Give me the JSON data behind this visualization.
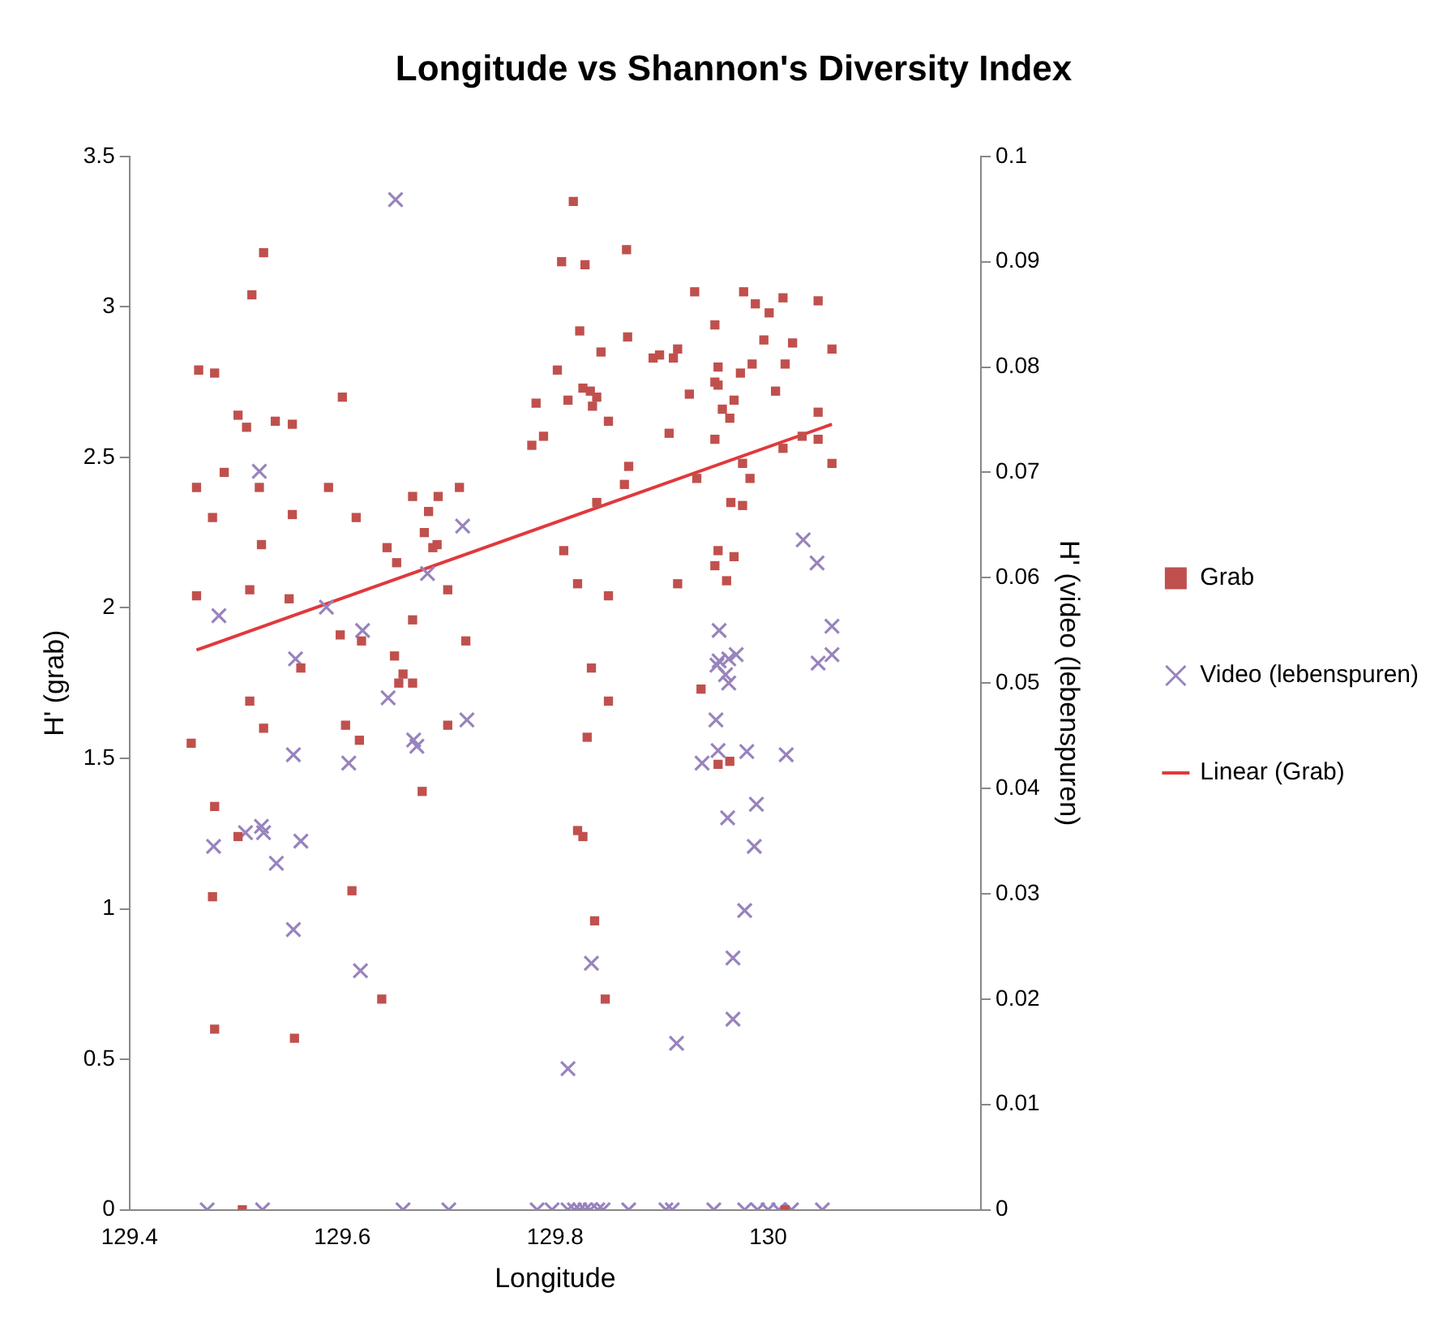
{
  "chart_data": {
    "type": "scatter",
    "title": "Longitude vs Shannon's Diversity Index",
    "xlabel": "Longitude",
    "ylabel": "H' (grab)",
    "y2label": "H' (video (lebenspuren)",
    "xlim": [
      129.4,
      130.2
    ],
    "xticks": [
      129.4,
      129.6,
      129.8,
      130
    ],
    "ylim": [
      0,
      3.5
    ],
    "yticks": [
      0,
      0.5,
      1,
      1.5,
      2,
      2.5,
      3,
      3.5
    ],
    "y2lim": [
      0,
      0.1
    ],
    "y2ticks": [
      0,
      0.01,
      0.02,
      0.03,
      0.04,
      0.05,
      0.06,
      0.07,
      0.08,
      0.09,
      0.1
    ],
    "grid": false,
    "legend": "right",
    "series": [
      {
        "name": "Grab",
        "type": "scatter",
        "marker": "square",
        "color": "#c0504d",
        "x": [
          129.526,
          129.515,
          129.465,
          129.48,
          129.6,
          129.502,
          129.51,
          129.537,
          129.553,
          129.463,
          129.489,
          129.522,
          129.587,
          129.478,
          129.553,
          129.613,
          129.666,
          129.69,
          129.71,
          129.681,
          129.524,
          129.677,
          129.689,
          129.685,
          129.642,
          129.651,
          129.463,
          129.513,
          129.55,
          129.699,
          129.666,
          129.598,
          129.618,
          129.716,
          129.561,
          129.649,
          129.657,
          129.653,
          129.666,
          129.513,
          129.458,
          129.526,
          129.603,
          129.616,
          129.699,
          129.675,
          129.48,
          129.502,
          129.478,
          129.609,
          129.637,
          129.48,
          129.555,
          129.506,
          129.817,
          129.806,
          129.828,
          129.867,
          129.931,
          129.977,
          129.988,
          130.001,
          130.014,
          130.047,
          129.95,
          129.823,
          129.868,
          129.996,
          130.023,
          130.06,
          129.843,
          129.892,
          129.898,
          129.911,
          129.915,
          129.802,
          129.953,
          129.985,
          129.974,
          130.016,
          129.782,
          129.812,
          129.826,
          129.833,
          129.839,
          129.835,
          129.85,
          129.95,
          129.953,
          129.926,
          130.007,
          129.968,
          129.957,
          129.964,
          129.778,
          129.789,
          129.907,
          129.95,
          130.047,
          130.032,
          130.047,
          130.014,
          130.06,
          129.869,
          129.865,
          129.976,
          129.933,
          129.983,
          129.839,
          129.965,
          129.976,
          129.808,
          129.953,
          129.95,
          129.968,
          129.821,
          129.85,
          129.915,
          129.961,
          129.834,
          129.937,
          129.85,
          129.83,
          129.953,
          129.964,
          129.821,
          129.826,
          129.837,
          129.847,
          130.016
        ],
        "values": [
          3.18,
          3.04,
          2.79,
          2.78,
          2.7,
          2.64,
          2.6,
          2.62,
          2.61,
          2.4,
          2.45,
          2.4,
          2.4,
          2.3,
          2.31,
          2.3,
          2.37,
          2.37,
          2.4,
          2.32,
          2.21,
          2.25,
          2.21,
          2.2,
          2.2,
          2.15,
          2.04,
          2.06,
          2.03,
          2.06,
          1.96,
          1.91,
          1.89,
          1.89,
          1.8,
          1.84,
          1.78,
          1.75,
          1.75,
          1.69,
          1.55,
          1.6,
          1.61,
          1.56,
          1.61,
          1.39,
          1.34,
          1.24,
          1.04,
          1.06,
          0.7,
          0.6,
          0.57,
          0,
          3.35,
          3.15,
          3.14,
          3.19,
          3.05,
          3.05,
          3.01,
          2.98,
          3.03,
          3.02,
          2.94,
          2.92,
          2.9,
          2.89,
          2.88,
          2.86,
          2.85,
          2.83,
          2.84,
          2.83,
          2.86,
          2.79,
          2.8,
          2.81,
          2.78,
          2.81,
          2.68,
          2.69,
          2.73,
          2.72,
          2.7,
          2.67,
          2.62,
          2.75,
          2.74,
          2.71,
          2.72,
          2.69,
          2.66,
          2.63,
          2.54,
          2.57,
          2.58,
          2.56,
          2.65,
          2.57,
          2.56,
          2.53,
          2.48,
          2.47,
          2.41,
          2.48,
          2.43,
          2.43,
          2.35,
          2.35,
          2.34,
          2.19,
          2.19,
          2.14,
          2.17,
          2.08,
          2.04,
          2.08,
          2.09,
          1.8,
          1.73,
          1.69,
          1.57,
          1.48,
          1.49,
          1.26,
          1.24,
          0.96,
          0.7,
          0
        ]
      },
      {
        "name": "Video (lebenspuren)",
        "type": "scatter",
        "marker": "cross",
        "color": "#9883bd",
        "axis": "y2",
        "x": [
          129.65,
          129.522,
          129.713,
          129.68,
          129.484,
          129.585,
          129.619,
          129.556,
          129.643,
          129.717,
          129.554,
          129.606,
          129.667,
          129.67,
          129.479,
          129.509,
          129.524,
          129.526,
          129.538,
          129.561,
          129.554,
          129.617,
          129.473,
          129.525,
          129.657,
          129.7,
          129.783,
          129.797,
          130.033,
          130.046,
          130.06,
          130.06,
          130.047,
          129.954,
          129.954,
          129.963,
          129.97,
          129.952,
          129.96,
          129.963,
          129.951,
          129.953,
          129.98,
          129.938,
          130.017,
          129.989,
          129.962,
          129.987,
          129.978,
          129.834,
          129.967,
          129.967,
          129.914,
          129.812,
          129.812,
          129.818,
          129.823,
          129.828,
          129.833,
          129.84,
          129.845,
          129.869,
          129.904,
          129.91,
          129.949,
          129.978,
          129.99,
          130.0,
          130.01,
          130.022,
          130.051
        ],
        "values": [
          0.0959,
          0.0701,
          0.0649,
          0.0604,
          0.0564,
          0.0572,
          0.055,
          0.0523,
          0.0486,
          0.0465,
          0.0432,
          0.0424,
          0.0446,
          0.044,
          0.0345,
          0.0358,
          0.0364,
          0.0358,
          0.0329,
          0.035,
          0.0266,
          0.0227,
          0,
          0,
          0,
          0,
          0,
          0,
          0.0636,
          0.0614,
          0.0554,
          0.0527,
          0.0519,
          0.055,
          0.0521,
          0.0523,
          0.0527,
          0.0517,
          0.0508,
          0.05,
          0.0465,
          0.0436,
          0.0435,
          0.0424,
          0.0432,
          0.0385,
          0.0372,
          0.0345,
          0.0284,
          0.0234,
          0.0239,
          0.0181,
          0.0158,
          0.0134,
          0,
          0,
          0,
          0,
          0,
          0,
          0,
          0,
          0,
          0,
          0,
          0,
          0,
          0,
          0,
          0,
          0
        ]
      },
      {
        "name": "Linear (Grab)",
        "type": "line",
        "marker": "none",
        "line_style": "solid",
        "color": "#e0393c",
        "x": [
          129.463,
          130.06
        ],
        "values": [
          1.86,
          2.61
        ]
      }
    ]
  }
}
